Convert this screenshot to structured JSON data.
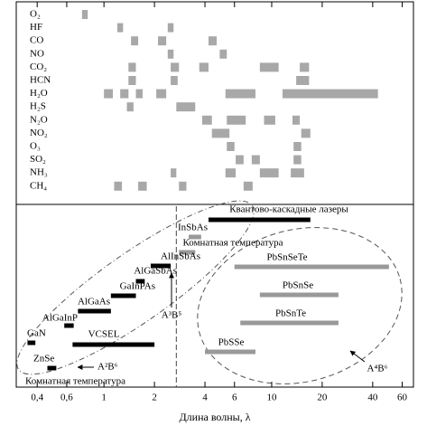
{
  "chart_data": {
    "type": "range",
    "xlabel": "Длина волны, λ",
    "log_x": true,
    "xlim": [
      0.3,
      70
    ],
    "xticks": [
      {
        "value": 0.4,
        "label": "0,4"
      },
      {
        "value": 0.6,
        "label": "0,6"
      },
      1,
      2,
      4,
      6,
      10,
      20,
      40,
      60
    ],
    "band_color": "#a8a8a8",
    "divider": 2.7,
    "gases": [
      {
        "name": "O₂",
        "bands": [
          [
            0.74,
            0.8
          ]
        ]
      },
      {
        "name": "HF",
        "bands": [
          [
            1.2,
            1.3
          ],
          [
            2.4,
            2.6
          ]
        ]
      },
      {
        "name": "CO",
        "bands": [
          [
            1.45,
            1.6
          ],
          [
            2.1,
            2.35
          ],
          [
            4.2,
            4.7
          ]
        ]
      },
      {
        "name": "NO",
        "bands": [
          [
            2.4,
            2.6
          ],
          [
            4.9,
            5.4
          ]
        ]
      },
      {
        "name": "CO₂",
        "bands": [
          [
            1.4,
            1.55
          ],
          [
            2.5,
            2.8
          ],
          [
            3.7,
            4.2
          ],
          [
            8.5,
            11
          ],
          [
            14.7,
            16.7
          ]
        ]
      },
      {
        "name": "HCN",
        "bands": [
          [
            1.4,
            1.55
          ],
          [
            2.5,
            2.75
          ],
          [
            14,
            16.7
          ]
        ]
      },
      {
        "name": "H₂O",
        "bands": [
          [
            1,
            1.13
          ],
          [
            1.25,
            1.4
          ],
          [
            1.55,
            1.7
          ],
          [
            2.05,
            2.35
          ],
          [
            5.3,
            8
          ],
          [
            11.6,
            43
          ]
        ]
      },
      {
        "name": "H₂S",
        "bands": [
          [
            1.37,
            1.5
          ],
          [
            2.7,
            3.5
          ]
        ]
      },
      {
        "name": "N₂O",
        "bands": [
          [
            3.85,
            4.4
          ],
          [
            5.4,
            7
          ],
          [
            9,
            10.5
          ],
          [
            13.3,
            14.7
          ]
        ]
      },
      {
        "name": "NO₂",
        "bands": [
          [
            4.4,
            5.6
          ],
          [
            15,
            17
          ]
        ]
      },
      {
        "name": "O₃",
        "bands": [
          [
            5.4,
            6
          ],
          [
            13.5,
            15
          ]
        ]
      },
      {
        "name": "SO₂",
        "bands": [
          [
            6.1,
            6.8
          ],
          [
            7.6,
            8.5
          ],
          [
            13.5,
            15
          ]
        ]
      },
      {
        "name": "NH₃",
        "bands": [
          [
            2.5,
            2.7
          ],
          [
            5.3,
            6.1
          ],
          [
            8.5,
            11
          ],
          [
            13,
            15.6
          ]
        ]
      },
      {
        "name": "CH₄",
        "bands": [
          [
            1.15,
            1.28
          ],
          [
            1.6,
            1.8
          ],
          [
            2.8,
            3.1
          ],
          [
            6.8,
            7.7
          ]
        ]
      }
    ],
    "lasers": [
      {
        "name": "Квантово-каскадные лазеры",
        "range": [
          4.2,
          17
        ],
        "color": "#000000"
      },
      {
        "name": "InSbAs",
        "range": [
          3.2,
          3.8
        ],
        "color": "#999999"
      },
      {
        "name": "Комнатная температура",
        "range": [
          2.8,
          3.5
        ],
        "color": "#999999"
      },
      {
        "name": "AlInSbAs",
        "range": [
          1.9,
          2.5
        ],
        "color": "#000000"
      },
      {
        "name": "AlGaSbAs",
        "range": [
          1.55,
          1.75
        ],
        "color": "#000000"
      },
      {
        "name": "GaInPAs",
        "range": [
          1.1,
          1.55
        ],
        "color": "#000000"
      },
      {
        "name": "AlGaAs",
        "range": [
          0.7,
          1.1
        ],
        "color": "#000000"
      },
      {
        "name": "AlGaInP",
        "range": [
          0.58,
          0.66
        ],
        "color": "#000000"
      },
      {
        "name": "GaN",
        "range": [
          0.35,
          0.39
        ],
        "color": "#000000"
      },
      {
        "name": "VCSEL",
        "range": [
          0.65,
          2
        ],
        "color": "#000000"
      },
      {
        "name": "ZnSe",
        "range": [
          0.46,
          0.52
        ],
        "color": "#000000"
      },
      {
        "name": "PbSnSeTe",
        "range": [
          6,
          50
        ],
        "color": "#999999"
      },
      {
        "name": "PbSnSe",
        "range": [
          8.5,
          25
        ],
        "color": "#999999"
      },
      {
        "name": "PbSnTe",
        "range": [
          6.5,
          25
        ],
        "color": "#999999"
      },
      {
        "name": "PbSSe",
        "range": [
          4,
          8
        ],
        "color": "#999999"
      }
    ],
    "annotations": [
      "A³B⁵",
      "A²B⁶",
      "A⁴B⁶",
      "Комнатная температура"
    ]
  }
}
